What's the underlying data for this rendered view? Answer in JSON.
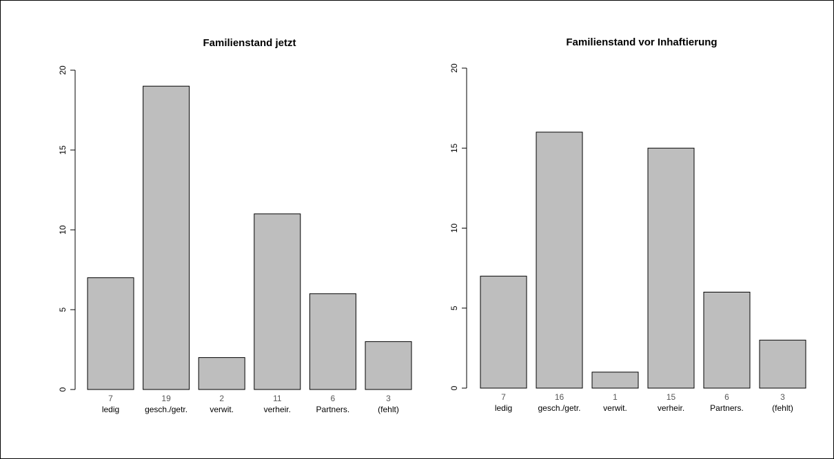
{
  "chart_data": [
    {
      "type": "bar",
      "title": "Familienstand jetzt",
      "categories": [
        "ledig",
        "gesch./getr.",
        "verwit.",
        "verheir.",
        "Partners.",
        "(fehlt)"
      ],
      "values": [
        7,
        19,
        2,
        11,
        6,
        3
      ],
      "count_labels": [
        "7",
        "19",
        "2",
        "11",
        "6",
        "3"
      ],
      "yticks": [
        "0",
        "5",
        "10",
        "15",
        "20"
      ],
      "ylim": [
        0,
        20
      ],
      "grid": false,
      "bar_color": "#bebebe"
    },
    {
      "type": "bar",
      "title": "Familienstand vor Inhaftierung",
      "categories": [
        "ledig",
        "gesch./getr.",
        "verwit.",
        "verheir.",
        "Partners.",
        "(fehlt)"
      ],
      "values": [
        7,
        16,
        1,
        15,
        6,
        3
      ],
      "count_labels": [
        "7",
        "16",
        "1",
        "15",
        "6",
        "3"
      ],
      "yticks": [
        "0",
        "5",
        "10",
        "15",
        "20"
      ],
      "ylim": [
        0,
        20
      ],
      "grid": false,
      "bar_color": "#bebebe"
    }
  ]
}
